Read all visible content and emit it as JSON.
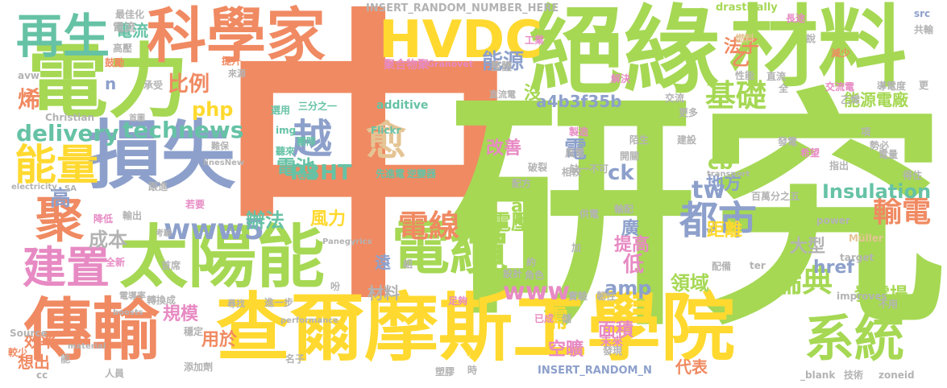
{
  "palette": {
    "orange": "#f08a62",
    "green": "#a6d854",
    "yellow": "#ffd92f",
    "blue": "#8da0cb",
    "teal": "#66c2a5",
    "pink": "#e78ac3",
    "tan": "#e5c494",
    "grey": "#b3b3b3"
  },
  "words": [
    {
      "text": "中",
      "color": "orange"
    },
    {
      "text": "研究",
      "color": "green"
    },
    {
      "text": "查爾摩斯工學院",
      "color": "yellow"
    },
    {
      "text": "絕緣",
      "color": "green"
    },
    {
      "text": "材料",
      "color": "green"
    },
    {
      "text": "電力",
      "color": "green"
    },
    {
      "text": "損失",
      "color": "blue"
    },
    {
      "text": "太陽能",
      "color": "green"
    },
    {
      "text": "傳輸",
      "color": "orange"
    },
    {
      "text": "科學家",
      "color": "orange"
    },
    {
      "text": "HVDC",
      "color": "yellow"
    },
    {
      "text": "電纜",
      "color": "green"
    },
    {
      "text": "系統",
      "color": "green"
    },
    {
      "text": "再生",
      "color": "teal"
    },
    {
      "text": "聚",
      "color": "orange"
    },
    {
      "text": "建置",
      "color": "pink"
    },
    {
      "text": "能量",
      "color": "yellow"
    },
    {
      "text": "都市",
      "color": "blue"
    },
    {
      "text": "越",
      "color": "blue"
    },
    {
      "text": "愈",
      "color": "tan"
    },
    {
      "text": "www5",
      "color": "blue"
    },
    {
      "text": "電線",
      "color": "orange"
    },
    {
      "text": "瑞典",
      "color": "green"
    },
    {
      "text": "基礎",
      "color": "green"
    },
    {
      "text": "輸電",
      "color": "orange"
    },
    {
      "text": "technews",
      "color": "teal"
    },
    {
      "text": "delivery",
      "color": "teal"
    },
    {
      "text": "P3HT",
      "color": "teal"
    },
    {
      "text": "Insulation",
      "color": "teal"
    },
    {
      "text": "能源",
      "color": "blue"
    },
    {
      "text": "比例",
      "color": "orange"
    },
    {
      "text": "php",
      "color": "yellow"
    },
    {
      "text": "電池",
      "color": "teal"
    },
    {
      "text": "cb",
      "color": "green"
    },
    {
      "text": "tw",
      "color": "blue"
    },
    {
      "text": "a4b3f35b",
      "color": "blue"
    },
    {
      "text": "www",
      "color": "pink"
    },
    {
      "text": "amp",
      "color": "blue"
    },
    {
      "text": "電壓",
      "color": "green"
    },
    {
      "text": "領域",
      "color": "green"
    },
    {
      "text": "發電場",
      "color": "green"
    },
    {
      "text": "能源電廠",
      "color": "green"
    },
    {
      "text": "傳送到",
      "color": "green"
    },
    {
      "text": "成本",
      "color": "grey"
    },
    {
      "text": "辦法",
      "color": "teal"
    },
    {
      "text": "風力",
      "color": "yellow"
    },
    {
      "text": "距離",
      "color": "yellow"
    },
    {
      "text": "大型",
      "color": "grey"
    },
    {
      "text": "href",
      "color": "blue"
    },
    {
      "text": "改善",
      "color": "pink"
    },
    {
      "text": "電",
      "color": "blue"
    },
    {
      "text": "提高",
      "color": "pink"
    },
    {
      "text": "用於",
      "color": "orange"
    },
    {
      "text": "效率",
      "color": "orange"
    },
    {
      "text": "想出",
      "color": "orange"
    },
    {
      "text": "高",
      "color": "blue"
    },
    {
      "text": "烯",
      "color": "orange"
    },
    {
      "text": "規模",
      "color": "pink"
    },
    {
      "text": "空曠",
      "color": "pink"
    },
    {
      "text": "面積",
      "color": "pink"
    },
    {
      "text": "需",
      "color": "yellow"
    },
    {
      "text": "代表",
      "color": "orange"
    },
    {
      "text": "法子",
      "color": "orange"
    },
    {
      "text": "地方",
      "color": "blue"
    },
    {
      "text": "ck",
      "color": "blue"
    },
    {
      "text": "低",
      "color": "pink"
    },
    {
      "text": "廣",
      "color": "blue"
    },
    {
      "text": "材料",
      "color": "grey"
    },
    {
      "text": "遠",
      "color": "blue"
    },
    {
      "text": "電流",
      "color": "teal"
    },
    {
      "text": "沒",
      "color": "green"
    },
    {
      "text": "乙",
      "color": "orange"
    },
    {
      "text": "n",
      "color": "blue"
    },
    {
      "text": "a",
      "color": "green"
    },
    {
      "text": "三分之一",
      "color": "teal"
    },
    {
      "text": "additive",
      "color": "teal"
    },
    {
      "text": "選用",
      "color": "teal"
    },
    {
      "text": "img",
      "color": "teal"
    },
    {
      "text": "團隊",
      "color": "teal"
    },
    {
      "text": "聽來",
      "color": "teal"
    },
    {
      "text": "容量",
      "color": "teal"
    },
    {
      "text": "Flickr",
      "color": "teal"
    },
    {
      "text": "先進電",
      "color": "teal"
    },
    {
      "text": "逆變器",
      "color": "teal"
    },
    {
      "text": "聚合物聚",
      "color": "pink"
    },
    {
      "text": "Granovet",
      "color": "pink"
    },
    {
      "text": "整體",
      "color": "grey"
    },
    {
      "text": "INSERT_RANDOM_NUMBER_HERE",
      "color": "grey"
    },
    {
      "text": "INSERT_RANDOM_N",
      "color": "blue"
    },
    {
      "text": "drastically",
      "color": "green"
    },
    {
      "text": "最佳化",
      "color": "grey"
    },
    {
      "text": "電流",
      "color": "grey"
    },
    {
      "text": "高壓",
      "color": "grey"
    },
    {
      "text": "鼓勵",
      "color": "orange"
    },
    {
      "text": "提升",
      "color": "orange"
    },
    {
      "text": "承受",
      "color": "grey"
    },
    {
      "text": "來源",
      "color": "grey"
    },
    {
      "text": "avw",
      "color": "grey"
    },
    {
      "text": "Christian",
      "color": "grey"
    },
    {
      "text": "electricity",
      "color": "grey"
    },
    {
      "text": "首圖",
      "color": "grey"
    },
    {
      "text": "難保",
      "color": "grey"
    },
    {
      "text": "linesNew",
      "color": "grey"
    },
    {
      "text": "跟進",
      "color": "grey"
    },
    {
      "text": "若要",
      "color": "pink"
    },
    {
      "text": "降低",
      "color": "pink"
    },
    {
      "text": "輸出",
      "color": "grey"
    },
    {
      "text": "考驗",
      "color": "grey"
    },
    {
      "text": "Panegyrics",
      "color": "grey"
    },
    {
      "text": "全新",
      "color": "pink"
    },
    {
      "text": "首席",
      "color": "grey"
    },
    {
      "text": "電導率",
      "color": "grey"
    },
    {
      "text": "轉換成",
      "color": "grey"
    },
    {
      "text": "尋找",
      "color": "grey"
    },
    {
      "text": "進一步",
      "color": "grey"
    },
    {
      "text": "足夠",
      "color": "pink"
    },
    {
      "text": "boosts",
      "color": "grey"
    },
    {
      "text": "performance",
      "color": "grey"
    },
    {
      "text": "material",
      "color": "grey"
    },
    {
      "text": "Source",
      "color": "grey"
    },
    {
      "text": "較少",
      "color": "orange"
    },
    {
      "text": "穩定",
      "color": "grey"
    },
    {
      "text": "添加劑",
      "color": "grey"
    },
    {
      "text": "人員",
      "color": "grey"
    },
    {
      "text": "名子",
      "color": "grey"
    },
    {
      "text": "塑膠",
      "color": "grey"
    },
    {
      "text": "時",
      "color": "grey"
    },
    {
      "text": "發現",
      "color": "grey"
    },
    {
      "text": "未來",
      "color": "pink"
    },
    {
      "text": "實驗",
      "color": "grey"
    },
    {
      "text": "韌性",
      "color": "grey"
    },
    {
      "text": "已成",
      "color": "pink"
    },
    {
      "text": "角色",
      "color": "grey"
    },
    {
      "text": "設計",
      "color": "grey"
    },
    {
      "text": "約",
      "color": "grey"
    },
    {
      "text": "加",
      "color": "grey"
    },
    {
      "text": "工業",
      "color": "pink"
    },
    {
      "text": "燃料",
      "color": "tan"
    },
    {
      "text": "長途",
      "color": "pink"
    },
    {
      "text": "說",
      "color": "grey"
    },
    {
      "text": "減少",
      "color": "orange"
    },
    {
      "text": "src",
      "color": "blue"
    },
    {
      "text": "共輸",
      "color": "grey"
    },
    {
      "text": "更",
      "color": "grey"
    },
    {
      "text": "導電度",
      "color": "grey"
    },
    {
      "text": "解決",
      "color": "pink"
    },
    {
      "text": "性能",
      "color": "grey"
    },
    {
      "text": "直流",
      "color": "grey"
    },
    {
      "text": "全",
      "color": "grey"
    },
    {
      "text": "交流電",
      "color": "pink"
    },
    {
      "text": "交流",
      "color": "grey"
    },
    {
      "text": "乙烯",
      "color": "grey"
    },
    {
      "text": "直流電",
      "color": "grey"
    },
    {
      "text": "更多",
      "color": "grey"
    },
    {
      "text": "製造",
      "color": "pink"
    },
    {
      "text": "風電",
      "color": "grey"
    },
    {
      "text": "相較",
      "color": "grey"
    },
    {
      "text": "配方",
      "color": "grey"
    },
    {
      "text": "破裂",
      "color": "grey"
    },
    {
      "text": "缺一不可",
      "color": "grey"
    },
    {
      "text": "陌生",
      "color": "grey"
    },
    {
      "text": "建設",
      "color": "grey"
    },
    {
      "text": "開關",
      "color": "grey"
    },
    {
      "text": "發電",
      "color": "grey"
    },
    {
      "text": "希望",
      "color": "pink"
    },
    {
      "text": "項",
      "color": "grey"
    },
    {
      "text": "勢必",
      "color": "grey"
    },
    {
      "text": "電量",
      "color": "grey"
    },
    {
      "text": "指出",
      "color": "grey"
    },
    {
      "text": "得住",
      "color": "grey"
    },
    {
      "text": "transport",
      "color": "grey"
    },
    {
      "text": "百萬分之五",
      "color": "grey"
    },
    {
      "text": "供電",
      "color": "grey"
    },
    {
      "text": "輸配",
      "color": "grey"
    },
    {
      "text": "power",
      "color": "grey"
    },
    {
      "text": "Müller",
      "color": "tan"
    },
    {
      "text": "target",
      "color": "grey"
    },
    {
      "text": "ter",
      "color": "grey"
    },
    {
      "text": "配備",
      "color": "grey"
    },
    {
      "text": "improves",
      "color": "grey"
    },
    {
      "text": "不用",
      "color": "grey"
    },
    {
      "text": "_blank",
      "color": "grey"
    },
    {
      "text": "技術",
      "color": "grey"
    },
    {
      "text": "zoneid",
      "color": "grey"
    },
    {
      "text": "SA",
      "color": "grey"
    },
    {
      "text": "組",
      "color": "grey"
    },
    {
      "text": "吩",
      "color": "grey"
    },
    {
      "text": "儲",
      "color": "grey"
    },
    {
      "text": "能",
      "color": "grey"
    },
    {
      "text": "cc",
      "color": "grey"
    }
  ]
}
